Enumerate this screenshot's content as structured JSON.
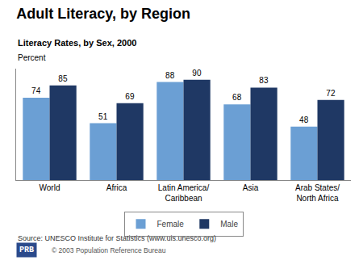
{
  "chart_data": {
    "type": "bar",
    "title": "Adult Literacy, by Region",
    "subtitle": "Literacy Rates, by Sex, 2000",
    "ylabel": "Percent",
    "categories": [
      "World",
      "Africa",
      "Latin America/\nCaribbean",
      "Asia",
      "Arab States/\nNorth Africa"
    ],
    "series": [
      {
        "name": "Female",
        "color": "#6B9FD4",
        "values": [
          74,
          51,
          88,
          68,
          48
        ]
      },
      {
        "name": "Male",
        "color": "#1F3864",
        "values": [
          85,
          69,
          90,
          83,
          72
        ]
      }
    ],
    "ylim": [
      0,
      100
    ],
    "grid": false,
    "legend": "bottom",
    "data_labels": true,
    "tick_labels": "x",
    "annotations": [
      "Source: UNESCO Institute for Statistics (www.uis.unesco.org)",
      "© 2003 Population Reference Bureau",
      "PRB"
    ]
  }
}
